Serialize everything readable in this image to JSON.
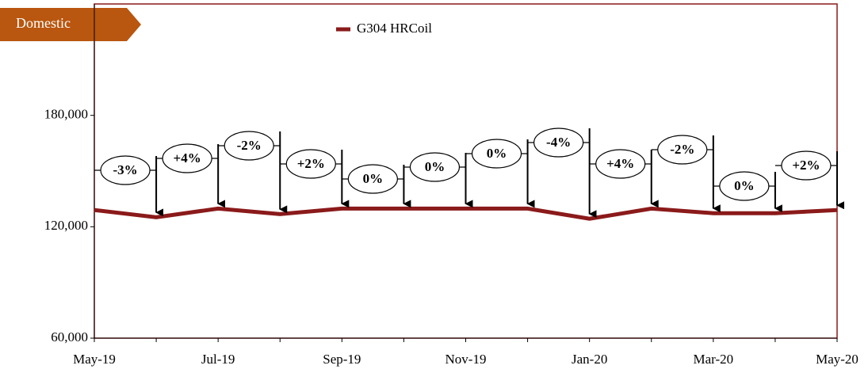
{
  "chart_data": {
    "type": "line",
    "badge": "Domestic",
    "categories": [
      "May-19",
      null,
      "Jul-19",
      null,
      "Sep-19",
      null,
      "Nov-19",
      null,
      "Jan-20",
      null,
      "Mar-20",
      null,
      "May-20"
    ],
    "series": [
      {
        "name": "G304 HRCoil",
        "color": "#8b1a1a",
        "values": [
          129000,
          125100,
          129800,
          126800,
          129800,
          129800,
          129800,
          129800,
          124300,
          129800,
          127300,
          127300,
          129000
        ]
      }
    ],
    "annotations": [
      "-3%",
      "+4%",
      "-2%",
      "+2%",
      "0%",
      "0%",
      "0%",
      "-4%",
      "+4%",
      "-2%",
      "0%",
      "+2%"
    ],
    "ylim": [
      60000,
      240000
    ],
    "yticks": [
      {
        "value": 60000,
        "label": "60,000"
      },
      {
        "value": 120000,
        "label": "120,000"
      },
      {
        "value": 180000,
        "label": "180,000"
      }
    ],
    "grid": false,
    "legend": "top"
  }
}
